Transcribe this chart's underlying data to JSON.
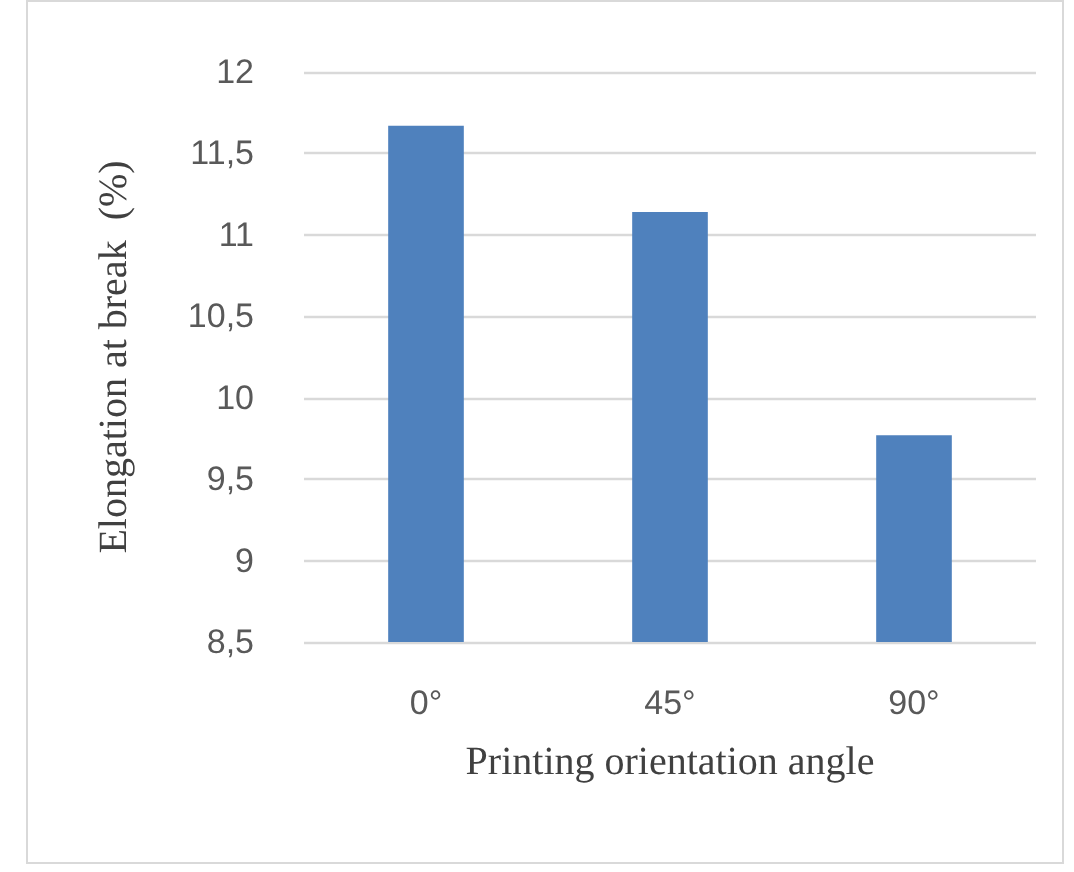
{
  "chart_data": {
    "type": "bar",
    "xlabel": "Printing orientation angle",
    "ylabel": "Elongation at break  (%)",
    "categories": [
      "0°",
      "45°",
      "90°"
    ],
    "values": [
      11.67,
      11.14,
      9.77
    ],
    "color": "#4f81bd",
    "ylim": [
      8.5,
      12
    ],
    "yticks": [
      {
        "value": 8.5,
        "label": "8,5"
      },
      9,
      {
        "value": 9.5,
        "label": "9,5"
      },
      10,
      {
        "value": 10.5,
        "label": "10,5"
      },
      11,
      {
        "value": 11.5,
        "label": "11,5"
      },
      12
    ],
    "grid": "y"
  }
}
